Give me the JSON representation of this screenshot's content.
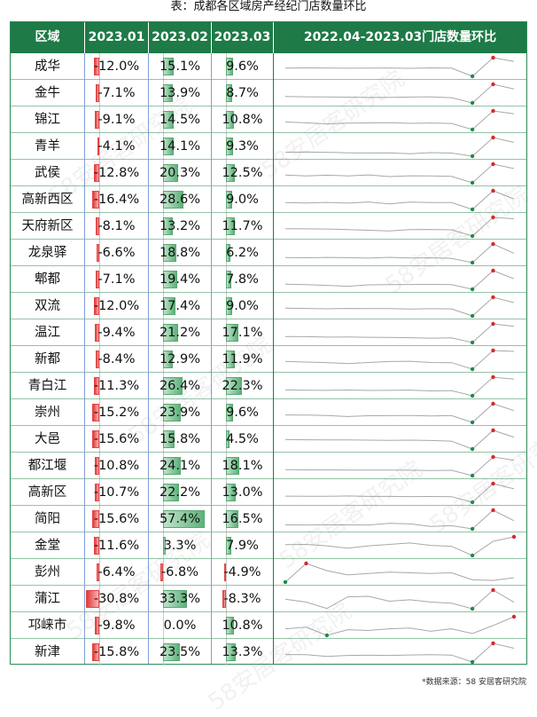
{
  "title": "表：成都各区域房产经纪门店数量环比",
  "source": "*数据来源：58 安居客研究院",
  "watermark": "58安居客研究院",
  "header": {
    "region": "区域",
    "m1": "2023.01",
    "m2": "2023.02",
    "m3": "2023.03",
    "trend": "2022.04-2023.03门店数量环比"
  },
  "colors": {
    "header_bg": "#1e7a47",
    "positive": "#5cb27a",
    "negative": "#e23a3a",
    "spark_line": "#a8a8a8",
    "spark_min": "#1e8a4a",
    "spark_max": "#d62828"
  },
  "rows": [
    {
      "region": "成华",
      "v1": "-12.0%",
      "v2": "15.1%",
      "v3": "9.6%",
      "n1": -12.0,
      "n2": 15.1,
      "n3": 9.6
    },
    {
      "region": "金牛",
      "v1": "-7.1%",
      "v2": "13.9%",
      "v3": "8.7%",
      "n1": -7.1,
      "n2": 13.9,
      "n3": 8.7
    },
    {
      "region": "锦江",
      "v1": "-9.1%",
      "v2": "14.5%",
      "v3": "10.8%",
      "n1": -9.1,
      "n2": 14.5,
      "n3": 10.8
    },
    {
      "region": "青羊",
      "v1": "-4.1%",
      "v2": "14.1%",
      "v3": "9.3%",
      "n1": -4.1,
      "n2": 14.1,
      "n3": 9.3
    },
    {
      "region": "武侯",
      "v1": "-12.8%",
      "v2": "20.3%",
      "v3": "12.5%",
      "n1": -12.8,
      "n2": 20.3,
      "n3": 12.5
    },
    {
      "region": "高新西区",
      "v1": "-16.4%",
      "v2": "28.6%",
      "v3": "9.0%",
      "n1": -16.4,
      "n2": 28.6,
      "n3": 9.0
    },
    {
      "region": "天府新区",
      "v1": "-8.1%",
      "v2": "13.2%",
      "v3": "11.7%",
      "n1": -8.1,
      "n2": 13.2,
      "n3": 11.7
    },
    {
      "region": "龙泉驿",
      "v1": "-6.6%",
      "v2": "18.8%",
      "v3": "6.2%",
      "n1": -6.6,
      "n2": 18.8,
      "n3": 6.2
    },
    {
      "region": "郫都",
      "v1": "-7.1%",
      "v2": "19.4%",
      "v3": "7.8%",
      "n1": -7.1,
      "n2": 19.4,
      "n3": 7.8
    },
    {
      "region": "双流",
      "v1": "-12.0%",
      "v2": "17.4%",
      "v3": "9.0%",
      "n1": -12.0,
      "n2": 17.4,
      "n3": 9.0
    },
    {
      "region": "温江",
      "v1": "-9.4%",
      "v2": "21.2%",
      "v3": "17.1%",
      "n1": -9.4,
      "n2": 21.2,
      "n3": 17.1
    },
    {
      "region": "新都",
      "v1": "-8.4%",
      "v2": "12.9%",
      "v3": "11.9%",
      "n1": -8.4,
      "n2": 12.9,
      "n3": 11.9
    },
    {
      "region": "青白江",
      "v1": "-11.3%",
      "v2": "26.4%",
      "v3": "22.3%",
      "n1": -11.3,
      "n2": 26.4,
      "n3": 22.3
    },
    {
      "region": "崇州",
      "v1": "-15.2%",
      "v2": "23.9%",
      "v3": "9.6%",
      "n1": -15.2,
      "n2": 23.9,
      "n3": 9.6
    },
    {
      "region": "大邑",
      "v1": "-15.6%",
      "v2": "15.8%",
      "v3": "4.5%",
      "n1": -15.6,
      "n2": 15.8,
      "n3": 4.5
    },
    {
      "region": "都江堰",
      "v1": "-10.8%",
      "v2": "24.1%",
      "v3": "18.1%",
      "n1": -10.8,
      "n2": 24.1,
      "n3": 18.1
    },
    {
      "region": "高新区",
      "v1": "-10.7%",
      "v2": "22.2%",
      "v3": "13.0%",
      "n1": -10.7,
      "n2": 22.2,
      "n3": 13.0
    },
    {
      "region": "简阳",
      "v1": "-15.6%",
      "v2": "57.4%",
      "v3": "16.5%",
      "n1": -15.6,
      "n2": 57.4,
      "n3": 16.5
    },
    {
      "region": "金堂",
      "v1": "-11.6%",
      "v2": "3.3%",
      "v3": "7.9%",
      "n1": -11.6,
      "n2": 3.3,
      "n3": 7.9
    },
    {
      "region": "彭州",
      "v1": "-6.4%",
      "v2": "-6.8%",
      "v3": "-4.9%",
      "n1": -6.4,
      "n2": -6.8,
      "n3": -4.9
    },
    {
      "region": "蒲江",
      "v1": "-30.8%",
      "v2": "33.3%",
      "v3": "-8.3%",
      "n1": -30.8,
      "n2": 33.3,
      "n3": -8.3
    },
    {
      "region": "邛崃市",
      "v1": "-9.8%",
      "v2": "0.0%",
      "v3": "10.8%",
      "n1": -9.8,
      "n2": 0.0,
      "n3": 10.8
    },
    {
      "region": "新津",
      "v1": "-15.8%",
      "v2": "23.5%",
      "v3": "13.3%",
      "n1": -15.8,
      "n2": 23.5,
      "n3": 13.3
    }
  ],
  "sparklines": [
    [
      0.0,
      0.2,
      0.1,
      -0.2,
      0.0,
      0.1,
      -0.4,
      0.3,
      -0.1,
      -12.0,
      15.1,
      9.6
    ],
    [
      0.1,
      -0.2,
      -0.4,
      -0.6,
      -1.0,
      -0.8,
      -0.5,
      -0.2,
      -1.2,
      -7.1,
      13.9,
      8.7
    ],
    [
      0.5,
      -0.6,
      -1.9,
      -0.9,
      -0.7,
      -0.4,
      -1.2,
      -0.8,
      -1.3,
      -9.1,
      14.5,
      10.8
    ],
    [
      -0.2,
      -0.1,
      -0.3,
      -0.8,
      -1.0,
      -0.8,
      -1.7,
      -0.6,
      -1.1,
      -4.1,
      14.1,
      9.3
    ],
    [
      0.9,
      -0.7,
      0.8,
      -0.5,
      1.2,
      -1.8,
      -0.3,
      -0.5,
      -1.4,
      -12.8,
      20.3,
      12.5
    ],
    [
      0.0,
      -0.8,
      0.6,
      -1.2,
      1.5,
      -3.0,
      1.2,
      0.3,
      0.2,
      -16.4,
      28.6,
      9.0
    ],
    [
      0.2,
      0.1,
      -0.1,
      -0.7,
      -1.5,
      -2.2,
      -0.8,
      -0.6,
      -1.0,
      -8.1,
      13.2,
      11.7
    ],
    [
      0.3,
      0.0,
      0.5,
      0.2,
      -0.4,
      0.6,
      -0.2,
      0.1,
      -0.8,
      -6.6,
      18.8,
      6.2
    ],
    [
      0.1,
      -0.4,
      -1.5,
      -2.8,
      -0.8,
      -0.6,
      -0.3,
      -0.2,
      -0.4,
      -7.1,
      19.4,
      7.8
    ],
    [
      0.2,
      -0.3,
      -0.8,
      -0.2,
      -0.5,
      -0.4,
      -1.1,
      -0.6,
      -0.9,
      -12.0,
      17.4,
      9.0
    ],
    [
      0.4,
      0.2,
      -0.5,
      -0.3,
      -0.8,
      -1.0,
      -1.5,
      -2.2,
      -1.8,
      -9.4,
      21.2,
      17.1
    ],
    [
      0.5,
      -0.3,
      -0.9,
      -2.0,
      -0.8,
      0.3,
      0.6,
      -0.8,
      -1.0,
      -8.4,
      12.9,
      11.9
    ],
    [
      0.6,
      -0.1,
      -0.4,
      0.3,
      -0.6,
      -0.4,
      0.2,
      -1.5,
      -1.0,
      -11.3,
      26.4,
      22.3
    ],
    [
      0.5,
      0.0,
      -0.8,
      -3.0,
      -1.2,
      -1.0,
      -0.9,
      -1.6,
      -1.1,
      -15.2,
      23.9,
      9.6
    ],
    [
      0.2,
      0.0,
      -0.3,
      -0.2,
      -0.6,
      -0.9,
      -0.6,
      -1.2,
      -2.5,
      -15.6,
      15.8,
      4.5
    ],
    [
      0.3,
      0.0,
      -0.2,
      -0.4,
      -0.5,
      -0.3,
      -0.6,
      -1.4,
      -0.9,
      -10.8,
      24.1,
      18.1
    ],
    [
      0.1,
      0.0,
      -0.2,
      0.4,
      -0.4,
      -0.3,
      -0.6,
      -0.5,
      -0.9,
      -10.7,
      22.2,
      13.0
    ],
    [
      0.1,
      -0.2,
      0.3,
      0.0,
      -0.3,
      6.0,
      4.0,
      -6.0,
      -3.0,
      -15.6,
      57.4,
      16.5
    ],
    [
      -0.2,
      0.0,
      -1.5,
      -4.0,
      -1.5,
      0.0,
      1.5,
      -1.0,
      -2.0,
      -11.6,
      3.3,
      7.9
    ],
    [
      -8.0,
      5.0,
      0.0,
      -3.0,
      -2.0,
      -1.0,
      -1.5,
      -2.0,
      -1.5,
      -6.4,
      -6.8,
      -4.9
    ],
    [
      2.0,
      -8.0,
      -30.0,
      10.0,
      12.0,
      -5.0,
      0.0,
      -8.0,
      -12.0,
      -30.8,
      33.3,
      -8.3
    ],
    [
      -4.0,
      -2.0,
      -12.0,
      -5.0,
      -6.0,
      -4.0,
      -3.0,
      -7.0,
      -4.0,
      -9.8,
      0.0,
      10.8
    ],
    [
      0.0,
      -0.3,
      -4.0,
      -2.0,
      -1.5,
      -2.0,
      -1.0,
      -0.5,
      -1.2,
      -15.8,
      23.5,
      13.3
    ]
  ]
}
